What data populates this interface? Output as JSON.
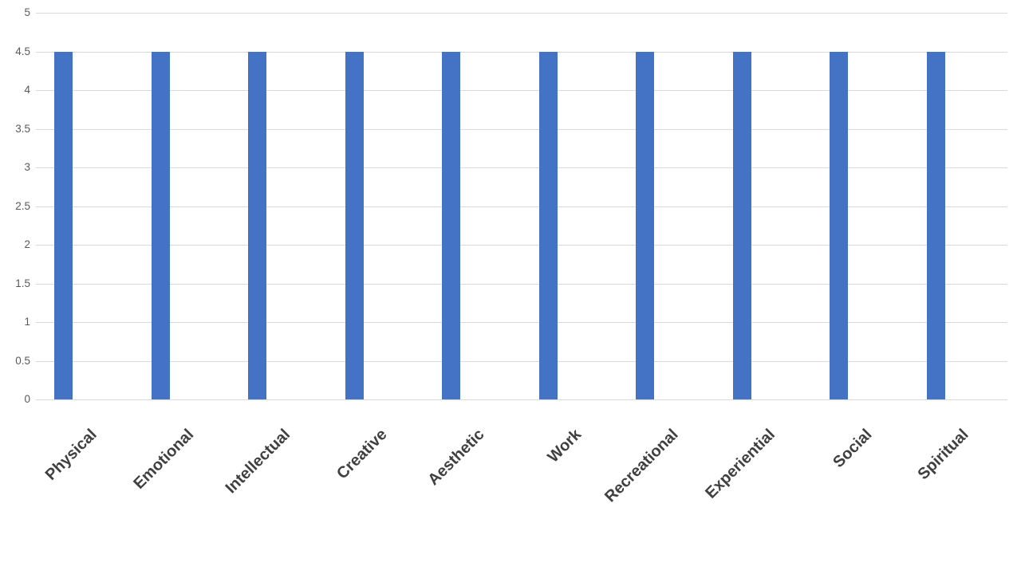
{
  "chart_data": {
    "type": "bar",
    "title": "",
    "xlabel": "",
    "ylabel": "",
    "categories": [
      "Physical",
      "Emotional",
      "Intellectual",
      "Creative",
      "Aesthetic",
      "Work",
      "Recreational",
      "Experiential",
      "Social",
      "Spiritual"
    ],
    "values": [
      4.5,
      4.5,
      4.5,
      4.5,
      4.5,
      4.5,
      4.5,
      4.5,
      4.5,
      4.5
    ],
    "ylim": [
      0,
      5
    ],
    "ytick_step": 0.5,
    "ytick_labels": [
      "0",
      "0.5",
      "1",
      "1.5",
      "2",
      "2.5",
      "3",
      "3.5",
      "4",
      "4.5",
      "5"
    ],
    "grid": true,
    "legend": false,
    "colors": {
      "bar": "#4472C4",
      "gridline": "#D9D9D9",
      "ytick_text": "#595959",
      "xtick_text": "#404040",
      "background": "#FFFFFF"
    }
  }
}
